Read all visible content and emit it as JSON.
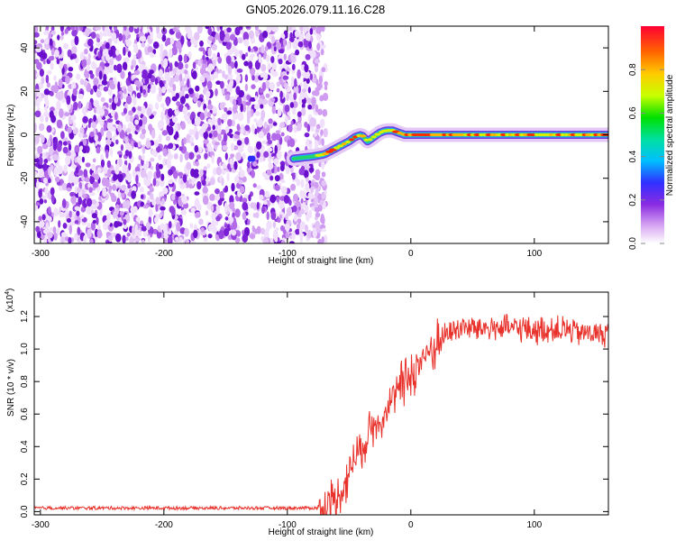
{
  "title": "GN05.2026.079.11.16.C28",
  "chart_data": [
    {
      "type": "heatmap",
      "name": "spectrogram",
      "xlabel": "Height of straight line (km)",
      "ylabel": "Frequency (Hz)",
      "xlim": [
        -305,
        160
      ],
      "ylim": [
        -50,
        50
      ],
      "xticks": [
        -300,
        -200,
        -100,
        0,
        100
      ],
      "yticks": [
        -40,
        -20,
        0,
        20,
        40
      ],
      "noise_region_x": [
        -305,
        -73
      ],
      "signal_track": {
        "x": [
          -130,
          -95,
          -80,
          -70,
          -60,
          -50,
          -45,
          -40,
          -35,
          -30,
          -25,
          -20,
          -15,
          -10,
          -5,
          0,
          20,
          50,
          80,
          100,
          120,
          140,
          160
        ],
        "freq": [
          -11,
          -11,
          -10,
          -9,
          -6,
          -3,
          -1,
          0,
          -3,
          -1,
          1,
          2,
          2,
          1,
          0,
          0,
          0,
          0,
          0,
          0,
          0,
          0,
          0
        ]
      },
      "colorbar": {
        "label": "Normalized spectral amplitude",
        "range": [
          0,
          1
        ],
        "ticks": [
          "0.0",
          "0.2",
          "0.4",
          "0.6",
          "0.8"
        ]
      }
    },
    {
      "type": "line",
      "name": "snr",
      "xlabel": "Height of straight line (km)",
      "ylabel": "SNR (10 * v/v)",
      "yscale_note": "(x10",
      "yscale_exp": "4",
      "xlim": [
        -305,
        160
      ],
      "ylim": [
        -0.02,
        1.35
      ],
      "xticks": [
        -300,
        -200,
        -100,
        0,
        100
      ],
      "yticks": [
        0.0,
        0.2,
        0.4,
        0.6,
        0.8,
        1.0,
        1.2
      ],
      "color": "#e8322b",
      "profile": {
        "x": [
          -305,
          -70,
          -60,
          -50,
          -45,
          -40,
          -35,
          -30,
          -25,
          -20,
          -15,
          -10,
          0,
          10,
          20,
          30,
          40,
          60,
          80,
          100,
          120,
          140,
          160
        ],
        "y": [
          0.02,
          0.02,
          0.07,
          0.25,
          0.33,
          0.4,
          0.45,
          0.55,
          0.58,
          0.62,
          0.68,
          0.75,
          0.85,
          0.95,
          1.02,
          1.1,
          1.13,
          1.13,
          1.13,
          1.12,
          1.12,
          1.1,
          1.09
        ]
      }
    }
  ]
}
